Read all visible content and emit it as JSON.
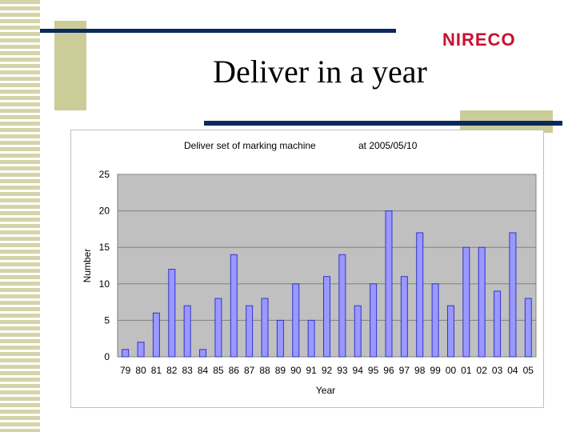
{
  "slide": {
    "title": "Deliver in a year",
    "logo_text": "NIRECO"
  },
  "colors": {
    "stripe": "#d4d4a8",
    "accent": "#cccc99",
    "rule": "#0a2a5e",
    "logo": "#c8102e",
    "plot_bg": "#c0c0c0",
    "bar_fill": "#9999ff",
    "bar_stroke": "#3333cc"
  },
  "chart_data": {
    "type": "bar",
    "title": "Deliver set of marking machine",
    "subtitle": "at 2005/05/10",
    "xlabel": "Year",
    "ylabel": "Number",
    "ylim": [
      0,
      25
    ],
    "yticks": [
      0,
      5,
      10,
      15,
      20,
      25
    ],
    "grid": true,
    "categories": [
      "79",
      "80",
      "81",
      "82",
      "83",
      "84",
      "85",
      "86",
      "87",
      "88",
      "89",
      "90",
      "91",
      "92",
      "93",
      "94",
      "95",
      "96",
      "97",
      "98",
      "99",
      "00",
      "01",
      "02",
      "03",
      "04",
      "05"
    ],
    "values": [
      1,
      2,
      6,
      12,
      7,
      1,
      8,
      14,
      7,
      8,
      5,
      10,
      5,
      11,
      14,
      7,
      10,
      20,
      11,
      17,
      10,
      7,
      15,
      15,
      9,
      17,
      8
    ]
  }
}
